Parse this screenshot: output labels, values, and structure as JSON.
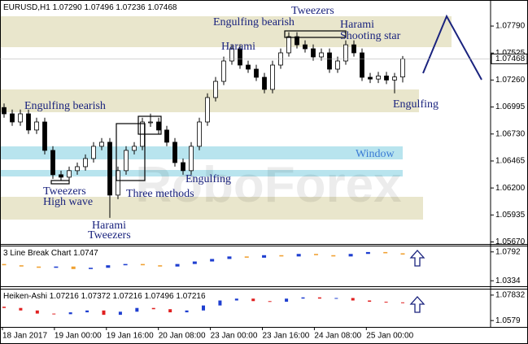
{
  "chart_data": {
    "type": "candlestick",
    "header": "EURUSD,H1  1.07290 1.07496 1.07236 1.07468",
    "watermark": "RoboForex",
    "current_price": 1.07468,
    "ylim": [
      1.0565,
      1.0803
    ],
    "yticks": [
      {
        "value": 1.0779,
        "label": "1.07790"
      },
      1.07525,
      {
        "value": 1.0726,
        "label": "1.07260"
      },
      1.06995,
      {
        "value": 1.0673,
        "label": "1.06730"
      },
      1.06465,
      {
        "value": 1.062,
        "label": "1.06200"
      },
      1.05935,
      {
        "value": 1.0567,
        "label": "1.05670"
      }
    ],
    "xlabels": [
      "18 Jan 2017",
      "19 Jan 00:00",
      "19 Jan 16:00",
      "20 Jan 08:00",
      "23 Jan 00:00",
      "23 Jan 16:00",
      "24 Jan 08:00",
      "25 Jan 00:00"
    ],
    "annotations": [
      "Engulfing bearish",
      "Tweezers",
      "Harami",
      "Shooting star",
      "Harami",
      "Engulfing bearish",
      "Window",
      "Engulfing",
      "Tweezers",
      "High wave",
      "Three methods",
      "Harami",
      "Tweezers",
      "Engulfing"
    ],
    "up_color": "#ffffff",
    "down_color": "#000000",
    "candles": [
      [
        1.0699,
        1.0703,
        1.0689,
        1.06928
      ],
      [
        1.06928,
        1.0697,
        1.0681,
        1.06848
      ],
      [
        1.06848,
        1.0697,
        1.0681,
        1.06928
      ],
      [
        1.06928,
        1.0697,
        1.0673,
        1.06769
      ],
      [
        1.06769,
        1.0689,
        1.0673,
        1.06848
      ],
      [
        1.06848,
        1.0689,
        1.0653,
        1.06569
      ],
      [
        1.06569,
        1.0661,
        1.0629,
        1.0633
      ],
      [
        1.0633,
        1.0637,
        1.0627,
        1.06306
      ],
      [
        1.06306,
        1.0641,
        1.0627,
        1.0637
      ],
      [
        1.0637,
        1.0645,
        1.0633,
        1.06409
      ],
      [
        1.06409,
        1.0653,
        1.0637,
        1.06489
      ],
      [
        1.06489,
        1.0665,
        1.0645,
        1.06609
      ],
      [
        1.06609,
        1.0669,
        1.0657,
        1.06649
      ],
      [
        1.06649,
        1.0669,
        1.05907,
        1.0613
      ],
      [
        1.0613,
        1.0641,
        1.0609,
        1.0637
      ],
      [
        1.0637,
        1.0661,
        1.0633,
        1.06569
      ],
      [
        1.06569,
        1.0665,
        1.0653,
        1.06609
      ],
      [
        1.06609,
        1.0689,
        1.0657,
        1.06848
      ],
      [
        1.06848,
        1.0693,
        1.068,
        1.06848
      ],
      [
        1.06848,
        1.0689,
        1.0673,
        1.06769
      ],
      [
        1.06769,
        1.0681,
        1.0661,
        1.06649
      ],
      [
        1.06649,
        1.0669,
        1.0641,
        1.06449
      ],
      [
        1.06449,
        1.0649,
        1.0633,
        1.0637
      ],
      [
        1.0637,
        1.0665,
        1.0633,
        1.06609
      ],
      [
        1.06609,
        1.0689,
        1.0657,
        1.06848
      ],
      [
        1.06848,
        1.0713,
        1.0681,
        1.07088
      ],
      [
        1.07088,
        1.0729,
        1.0705,
        1.07247
      ],
      [
        1.07247,
        1.0749,
        1.0721,
        1.07447
      ],
      [
        1.07447,
        1.0761,
        1.0741,
        1.07567
      ],
      [
        1.07567,
        1.0761,
        1.0737,
        1.07407
      ],
      [
        1.07407,
        1.0745,
        1.0733,
        1.07367
      ],
      [
        1.07367,
        1.0741,
        1.0725,
        1.07287
      ],
      [
        1.07287,
        1.0733,
        1.0713,
        1.07168
      ],
      [
        1.07168,
        1.0745,
        1.0713,
        1.07407
      ],
      [
        1.07407,
        1.0757,
        1.0737,
        1.07527
      ],
      [
        1.07527,
        1.0773,
        1.0749,
        1.07686
      ],
      [
        1.07686,
        1.0773,
        1.0757,
        1.07606
      ],
      [
        1.07606,
        1.0765,
        1.0753,
        1.07567
      ],
      [
        1.07567,
        1.0761,
        1.0745,
        1.07487
      ],
      [
        1.07487,
        1.0757,
        1.0745,
        1.07527
      ],
      [
        1.07527,
        1.0757,
        1.0733,
        1.07367
      ],
      [
        1.07367,
        1.0749,
        1.0733,
        1.07447
      ],
      [
        1.07447,
        1.0765,
        1.0741,
        1.07606
      ],
      [
        1.07606,
        1.0765,
        1.0749,
        1.07527
      ],
      [
        1.07527,
        1.0757,
        1.0725,
        1.07287
      ],
      [
        1.07287,
        1.0733,
        1.0723,
        1.0727
      ],
      [
        1.0727,
        1.0734,
        1.0723,
        1.073
      ],
      [
        1.073,
        1.0734,
        1.0722,
        1.0726
      ],
      [
        1.0726,
        1.0733,
        1.0713,
        1.0729
      ],
      [
        1.0729,
        1.07496,
        1.07236,
        1.07468
      ]
    ],
    "linebreak": {
      "title": "3 Line Break Chart 1.0747",
      "up_color": "#1f3fd0",
      "down_color": "#f0a030",
      "ylim": [
        1.02597,
        1.08663
      ],
      "yticks": [
        1.0792,
        1.0334
      ],
      "bricks": [
        [
          1.06,
          1.058
        ],
        [
          1.058,
          1.056
        ],
        [
          1.056,
          1.054
        ],
        [
          1.054,
          1.056
        ],
        [
          1.056,
          1.052
        ],
        [
          1.052,
          1.054
        ],
        [
          1.054,
          1.058
        ],
        [
          1.058,
          1.06
        ],
        [
          1.06,
          1.058
        ],
        [
          1.058,
          1.056
        ],
        [
          1.056,
          1.06
        ],
        [
          1.06,
          1.064
        ],
        [
          1.064,
          1.068
        ],
        [
          1.068,
          1.072
        ],
        [
          1.072,
          1.07
        ],
        [
          1.07,
          1.074
        ],
        [
          1.074,
          1.072
        ],
        [
          1.072,
          1.076
        ],
        [
          1.076,
          1.074
        ],
        [
          1.074,
          1.072
        ],
        [
          1.072,
          1.076
        ],
        [
          1.076,
          1.079
        ],
        [
          1.079,
          1.077
        ],
        [
          1.077,
          1.075
        ]
      ]
    },
    "heikin": {
      "title": "Heiken-Ashi 1.07216 1.07372 1.07216 1.07496 1.07216",
      "up_color": "#1f3fd0",
      "down_color": "#e02020",
      "ylim": [
        1.05345,
        1.08215
      ],
      "yticks": [
        1.07832,
        1.0579
      ],
      "bars": [
        [
          1.069,
          1.068
        ],
        [
          1.068,
          1.066
        ],
        [
          1.066,
          1.0635
        ],
        [
          1.0635,
          1.063
        ],
        [
          1.063,
          1.0645
        ],
        [
          1.0645,
          1.066
        ],
        [
          1.066,
          1.0625
        ],
        [
          1.0625,
          1.065
        ],
        [
          1.065,
          1.068
        ],
        [
          1.068,
          1.067
        ],
        [
          1.067,
          1.0645
        ],
        [
          1.0645,
          1.066
        ],
        [
          1.066,
          1.07
        ],
        [
          1.07,
          1.074
        ],
        [
          1.074,
          1.0755
        ],
        [
          1.0755,
          1.0735
        ],
        [
          1.0735,
          1.073
        ],
        [
          1.073,
          1.0755
        ],
        [
          1.0755,
          1.0765
        ],
        [
          1.0765,
          1.0755
        ],
        [
          1.0755,
          1.076
        ],
        [
          1.076,
          1.074
        ],
        [
          1.074,
          1.073
        ],
        [
          1.073,
          1.0725
        ],
        [
          1.0725,
          1.0722
        ]
      ]
    }
  }
}
